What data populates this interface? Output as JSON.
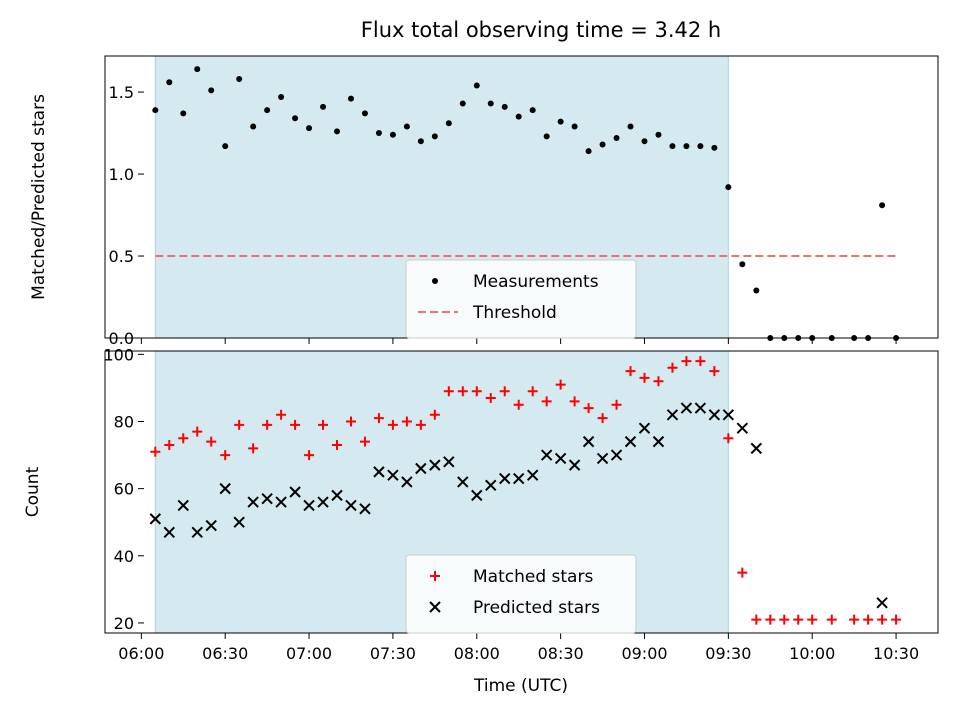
{
  "chart_data": [
    {
      "type": "scatter",
      "title": "Flux total observing time = 3.42 h",
      "xlabel": "",
      "ylabel": "Matched/Predicted stars",
      "ylim": [
        0,
        1.72
      ],
      "y_ticks": [
        "0.0",
        "0.5",
        "1.0",
        "1.5"
      ],
      "shaded_span": [
        "06:05",
        "09:30"
      ],
      "legend_position": "bottom-center",
      "series": [
        {
          "name": "Measurements",
          "marker": "dot",
          "color": "#000000",
          "points": [
            [
              "06:05",
              1.39
            ],
            [
              "06:10",
              1.56
            ],
            [
              "06:15",
              1.37
            ],
            [
              "06:20",
              1.64
            ],
            [
              "06:25",
              1.51
            ],
            [
              "06:30",
              1.17
            ],
            [
              "06:35",
              1.58
            ],
            [
              "06:40",
              1.29
            ],
            [
              "06:45",
              1.39
            ],
            [
              "06:50",
              1.47
            ],
            [
              "06:55",
              1.34
            ],
            [
              "07:00",
              1.28
            ],
            [
              "07:05",
              1.41
            ],
            [
              "07:10",
              1.26
            ],
            [
              "07:15",
              1.46
            ],
            [
              "07:20",
              1.37
            ],
            [
              "07:25",
              1.25
            ],
            [
              "07:30",
              1.24
            ],
            [
              "07:35",
              1.29
            ],
            [
              "07:40",
              1.2
            ],
            [
              "07:45",
              1.23
            ],
            [
              "07:50",
              1.31
            ],
            [
              "07:55",
              1.43
            ],
            [
              "08:00",
              1.54
            ],
            [
              "08:05",
              1.43
            ],
            [
              "08:10",
              1.41
            ],
            [
              "08:15",
              1.35
            ],
            [
              "08:20",
              1.39
            ],
            [
              "08:25",
              1.23
            ],
            [
              "08:30",
              1.32
            ],
            [
              "08:35",
              1.29
            ],
            [
              "08:40",
              1.14
            ],
            [
              "08:45",
              1.18
            ],
            [
              "08:50",
              1.22
            ],
            [
              "08:55",
              1.29
            ],
            [
              "09:00",
              1.2
            ],
            [
              "09:05",
              1.24
            ],
            [
              "09:10",
              1.17
            ],
            [
              "09:15",
              1.17
            ],
            [
              "09:20",
              1.17
            ],
            [
              "09:25",
              1.16
            ],
            [
              "09:30",
              0.92
            ],
            [
              "09:35",
              0.45
            ],
            [
              "09:40",
              0.29
            ],
            [
              "09:45",
              0.0
            ],
            [
              "09:50",
              0.0
            ],
            [
              "09:55",
              0.0
            ],
            [
              "10:00",
              0.0
            ],
            [
              "10:07",
              0.0
            ],
            [
              "10:15",
              0.0
            ],
            [
              "10:20",
              0.0
            ],
            [
              "10:25",
              0.81
            ],
            [
              "10:30",
              0.0
            ]
          ]
        },
        {
          "name": "Threshold",
          "marker": "dashed-line",
          "color": "#f07070",
          "points": [
            [
              "06:05",
              0.5
            ],
            [
              "10:30",
              0.5
            ]
          ]
        }
      ]
    },
    {
      "type": "scatter",
      "xlabel": "Time (UTC)",
      "ylabel": "Count",
      "ylim": [
        17,
        101
      ],
      "y_ticks": [
        "20",
        "40",
        "60",
        "80",
        "100"
      ],
      "x_ticks": [
        "06:00",
        "06:30",
        "07:00",
        "07:30",
        "08:00",
        "08:30",
        "09:00",
        "09:30",
        "10:00",
        "10:30"
      ],
      "shaded_span": [
        "06:05",
        "09:30"
      ],
      "legend_position": "bottom-center",
      "series": [
        {
          "name": "Matched stars",
          "marker": "plus",
          "color": "#ff0000",
          "points": [
            [
              "06:05",
              71
            ],
            [
              "06:10",
              73
            ],
            [
              "06:15",
              75
            ],
            [
              "06:20",
              77
            ],
            [
              "06:25",
              74
            ],
            [
              "06:30",
              70
            ],
            [
              "06:35",
              79
            ],
            [
              "06:40",
              72
            ],
            [
              "06:45",
              79
            ],
            [
              "06:50",
              82
            ],
            [
              "06:55",
              79
            ],
            [
              "07:00",
              70
            ],
            [
              "07:05",
              79
            ],
            [
              "07:10",
              73
            ],
            [
              "07:15",
              80
            ],
            [
              "07:20",
              74
            ],
            [
              "07:25",
              81
            ],
            [
              "07:30",
              79
            ],
            [
              "07:35",
              80
            ],
            [
              "07:40",
              79
            ],
            [
              "07:45",
              82
            ],
            [
              "07:50",
              89
            ],
            [
              "07:55",
              89
            ],
            [
              "08:00",
              89
            ],
            [
              "08:05",
              87
            ],
            [
              "08:10",
              89
            ],
            [
              "08:15",
              85
            ],
            [
              "08:20",
              89
            ],
            [
              "08:25",
              86
            ],
            [
              "08:30",
              91
            ],
            [
              "08:35",
              86
            ],
            [
              "08:40",
              84
            ],
            [
              "08:45",
              81
            ],
            [
              "08:50",
              85
            ],
            [
              "08:55",
              95
            ],
            [
              "09:00",
              93
            ],
            [
              "09:05",
              92
            ],
            [
              "09:10",
              96
            ],
            [
              "09:15",
              98
            ],
            [
              "09:20",
              98
            ],
            [
              "09:25",
              95
            ],
            [
              "09:30",
              75
            ],
            [
              "09:35",
              35
            ],
            [
              "09:40",
              21
            ],
            [
              "09:45",
              21
            ],
            [
              "09:50",
              21
            ],
            [
              "09:55",
              21
            ],
            [
              "10:00",
              21
            ],
            [
              "10:07",
              21
            ],
            [
              "10:15",
              21
            ],
            [
              "10:20",
              21
            ],
            [
              "10:25",
              21
            ],
            [
              "10:30",
              21
            ]
          ]
        },
        {
          "name": "Predicted stars",
          "marker": "x",
          "color": "#000000",
          "points": [
            [
              "06:05",
              51
            ],
            [
              "06:10",
              47
            ],
            [
              "06:15",
              55
            ],
            [
              "06:20",
              47
            ],
            [
              "06:25",
              49
            ],
            [
              "06:30",
              60
            ],
            [
              "06:35",
              50
            ],
            [
              "06:40",
              56
            ],
            [
              "06:45",
              57
            ],
            [
              "06:50",
              56
            ],
            [
              "06:55",
              59
            ],
            [
              "07:00",
              55
            ],
            [
              "07:05",
              56
            ],
            [
              "07:10",
              58
            ],
            [
              "07:15",
              55
            ],
            [
              "07:20",
              54
            ],
            [
              "07:25",
              65
            ],
            [
              "07:30",
              64
            ],
            [
              "07:35",
              62
            ],
            [
              "07:40",
              66
            ],
            [
              "07:45",
              67
            ],
            [
              "07:50",
              68
            ],
            [
              "07:55",
              62
            ],
            [
              "08:00",
              58
            ],
            [
              "08:05",
              61
            ],
            [
              "08:10",
              63
            ],
            [
              "08:15",
              63
            ],
            [
              "08:20",
              64
            ],
            [
              "08:25",
              70
            ],
            [
              "08:30",
              69
            ],
            [
              "08:35",
              67
            ],
            [
              "08:40",
              74
            ],
            [
              "08:45",
              69
            ],
            [
              "08:50",
              70
            ],
            [
              "08:55",
              74
            ],
            [
              "09:00",
              78
            ],
            [
              "09:05",
              74
            ],
            [
              "09:10",
              82
            ],
            [
              "09:15",
              84
            ],
            [
              "09:20",
              84
            ],
            [
              "09:25",
              82
            ],
            [
              "09:30",
              82
            ],
            [
              "09:35",
              78
            ],
            [
              "09:40",
              72
            ],
            [
              "10:25",
              26
            ]
          ]
        }
      ]
    }
  ]
}
